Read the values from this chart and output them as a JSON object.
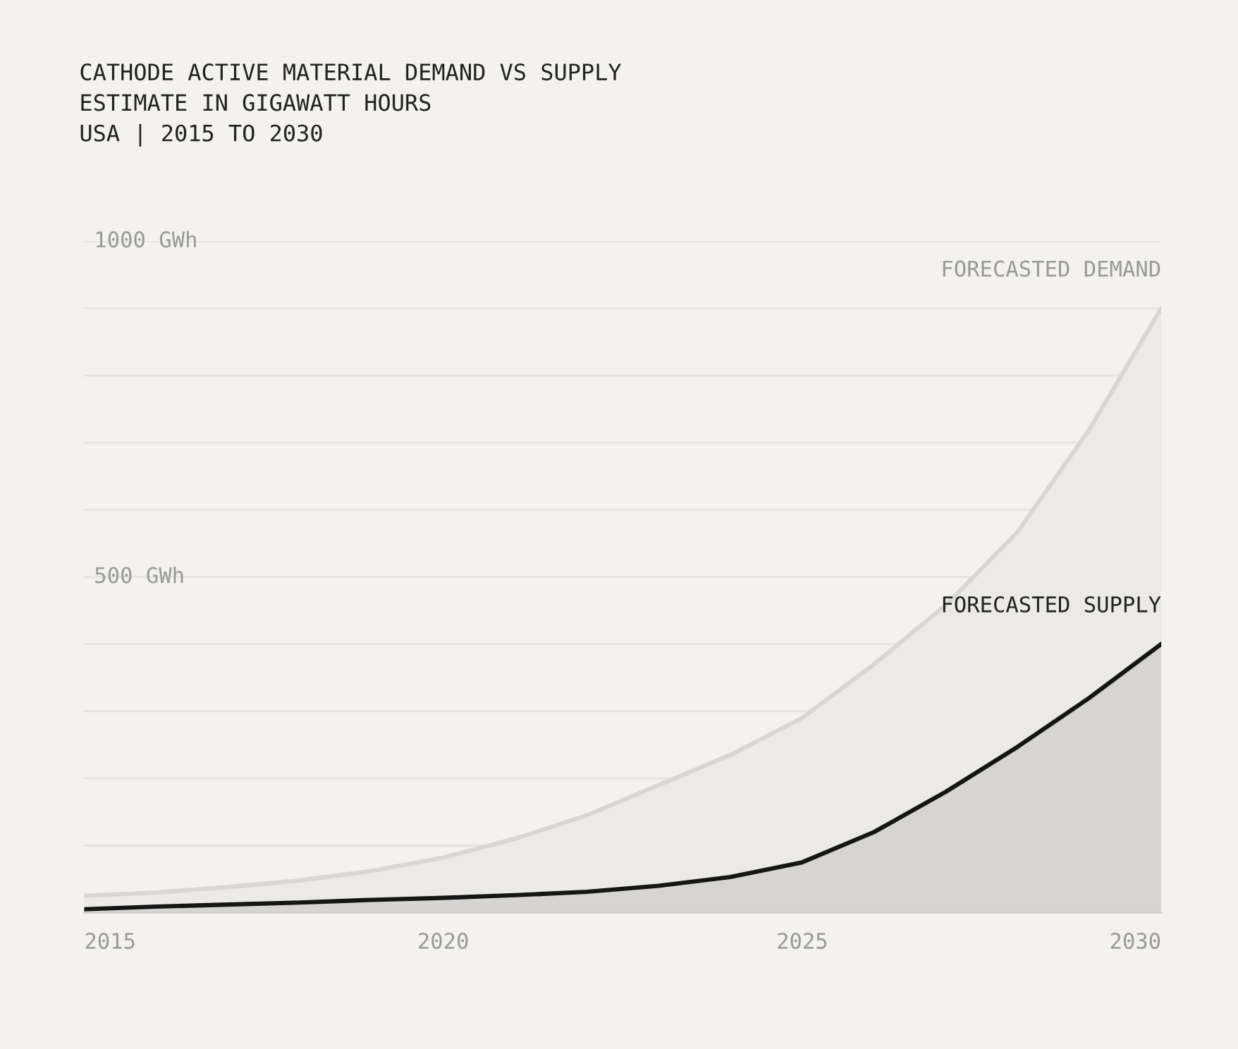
{
  "chart_data": {
    "type": "area",
    "title": "CATHODE ACTIVE MATERIAL DEMAND VS SUPPLY\nESTIMATE IN GIGAWATT HOURS\nUSA | 2015 TO 2030",
    "x": [
      2015,
      2016,
      2017,
      2018,
      2019,
      2020,
      2021,
      2022,
      2023,
      2024,
      2025,
      2026,
      2027,
      2028,
      2029,
      2030
    ],
    "series": [
      {
        "name": "FORECASTED DEMAND",
        "color": "#d8d7d3",
        "values": [
          25,
          30,
          38,
          48,
          62,
          82,
          110,
          145,
          190,
          235,
          290,
          370,
          458,
          567,
          720,
          900
        ]
      },
      {
        "name": "FORECASTED SUPPLY",
        "color": "#151515",
        "values": [
          5,
          9,
          12,
          15,
          19,
          22,
          26,
          31,
          40,
          53,
          75,
          120,
          180,
          247,
          320,
          400
        ]
      }
    ],
    "xlim": [
      2015,
      2030
    ],
    "xticks": [
      2015,
      2020,
      2025,
      2030
    ],
    "ylim": [
      0,
      1000
    ],
    "yticks": [
      {
        "value": 0,
        "label": null
      },
      {
        "value": 100,
        "label": null
      },
      {
        "value": 200,
        "label": null
      },
      {
        "value": 300,
        "label": null
      },
      {
        "value": 400,
        "label": null
      },
      {
        "value": 500,
        "label": "500 GWh"
      },
      {
        "value": 600,
        "label": null
      },
      {
        "value": 700,
        "label": null
      },
      {
        "value": 800,
        "label": null
      },
      {
        "value": 900,
        "label": null
      },
      {
        "value": 1000,
        "label": "1000 GWh"
      }
    ],
    "grid": "y"
  }
}
